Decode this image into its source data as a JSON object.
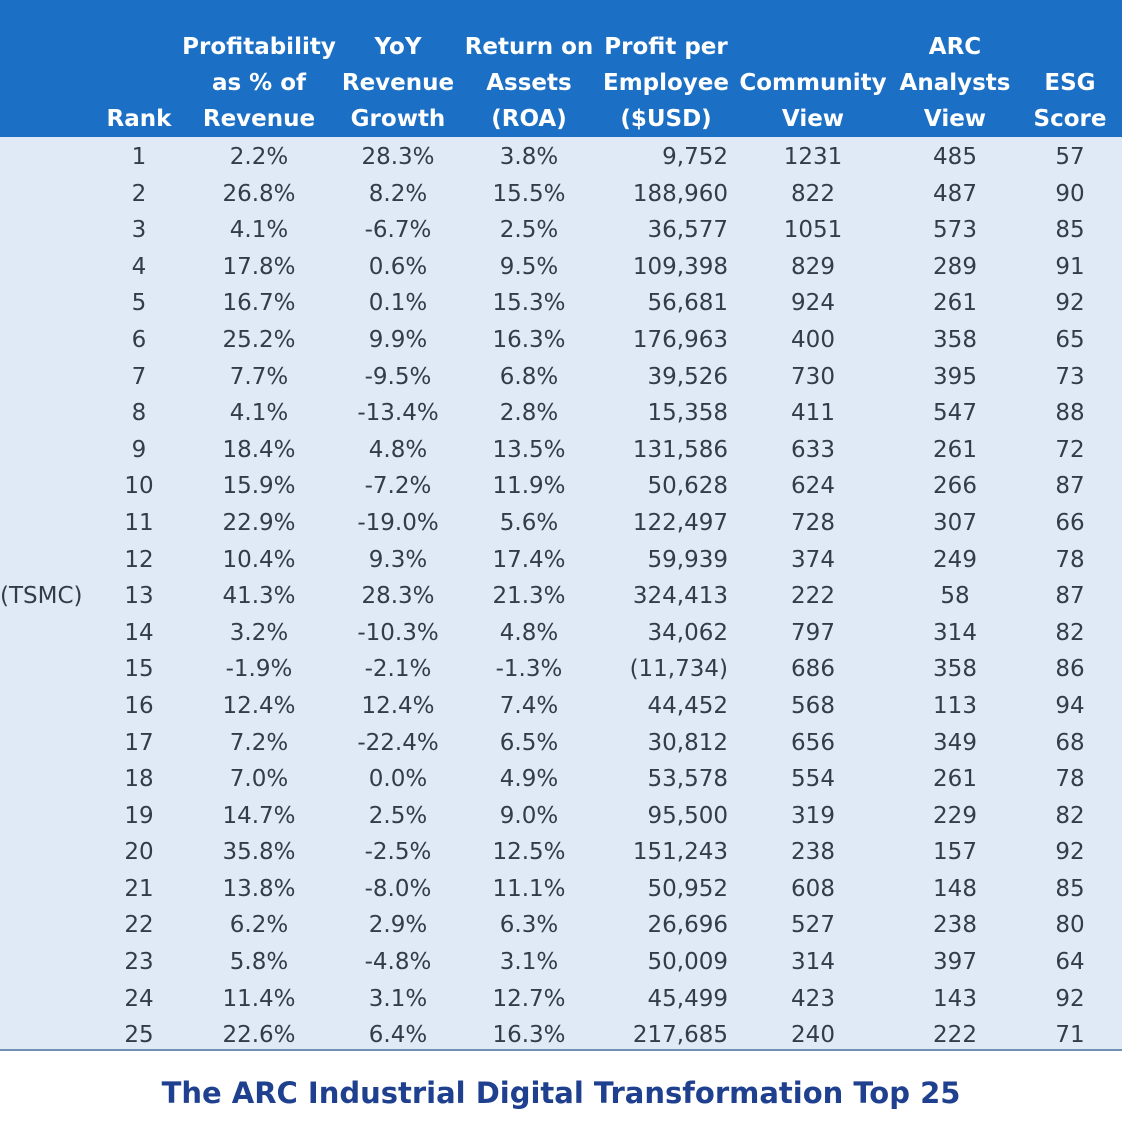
{
  "headers": {
    "rank": "Rank",
    "profitability": "Profitability\nas % of\nRevenue",
    "yoy": "YoY\nRevenue\nGrowth",
    "roa": "Return on\nAssets\n(ROA)",
    "ppe": "Profit per\nEmployee\n($USD)",
    "community": "Community\nView",
    "arc": "ARC\nAnalysts\nView",
    "esg": "ESG\nScore"
  },
  "rows": [
    {
      "name": "",
      "rank": "1",
      "profit": "2.2%",
      "yoy": "28.3%",
      "roa": "3.8%",
      "ppe": "9,752",
      "community": "1231",
      "arc": "485",
      "esg": "57"
    },
    {
      "name": "",
      "rank": "2",
      "profit": "26.8%",
      "yoy": "8.2%",
      "roa": "15.5%",
      "ppe": "188,960",
      "community": "822",
      "arc": "487",
      "esg": "90"
    },
    {
      "name": "",
      "rank": "3",
      "profit": "4.1%",
      "yoy": "-6.7%",
      "roa": "2.5%",
      "ppe": "36,577",
      "community": "1051",
      "arc": "573",
      "esg": "85"
    },
    {
      "name": "",
      "rank": "4",
      "profit": "17.8%",
      "yoy": "0.6%",
      "roa": "9.5%",
      "ppe": "109,398",
      "community": "829",
      "arc": "289",
      "esg": "91"
    },
    {
      "name": "",
      "rank": "5",
      "profit": "16.7%",
      "yoy": "0.1%",
      "roa": "15.3%",
      "ppe": "56,681",
      "community": "924",
      "arc": "261",
      "esg": "92"
    },
    {
      "name": "",
      "rank": "6",
      "profit": "25.2%",
      "yoy": "9.9%",
      "roa": "16.3%",
      "ppe": "176,963",
      "community": "400",
      "arc": "358",
      "esg": "65"
    },
    {
      "name": "",
      "rank": "7",
      "profit": "7.7%",
      "yoy": "-9.5%",
      "roa": "6.8%",
      "ppe": "39,526",
      "community": "730",
      "arc": "395",
      "esg": "73"
    },
    {
      "name": "",
      "rank": "8",
      "profit": "4.1%",
      "yoy": "-13.4%",
      "roa": "2.8%",
      "ppe": "15,358",
      "community": "411",
      "arc": "547",
      "esg": "88"
    },
    {
      "name": "",
      "rank": "9",
      "profit": "18.4%",
      "yoy": "4.8%",
      "roa": "13.5%",
      "ppe": "131,586",
      "community": "633",
      "arc": "261",
      "esg": "72"
    },
    {
      "name": "",
      "rank": "10",
      "profit": "15.9%",
      "yoy": "-7.2%",
      "roa": "11.9%",
      "ppe": "50,628",
      "community": "624",
      "arc": "266",
      "esg": "87"
    },
    {
      "name": "",
      "rank": "11",
      "profit": "22.9%",
      "yoy": "-19.0%",
      "roa": "5.6%",
      "ppe": "122,497",
      "community": "728",
      "arc": "307",
      "esg": "66"
    },
    {
      "name": "",
      "rank": "12",
      "profit": "10.4%",
      "yoy": "9.3%",
      "roa": "17.4%",
      "ppe": "59,939",
      "community": "374",
      "arc": "249",
      "esg": "78"
    },
    {
      "name": "(TSMC)",
      "rank": "13",
      "profit": "41.3%",
      "yoy": "28.3%",
      "roa": "21.3%",
      "ppe": "324,413",
      "community": "222",
      "arc": "58",
      "esg": "87"
    },
    {
      "name": "",
      "rank": "14",
      "profit": "3.2%",
      "yoy": "-10.3%",
      "roa": "4.8%",
      "ppe": "34,062",
      "community": "797",
      "arc": "314",
      "esg": "82"
    },
    {
      "name": "",
      "rank": "15",
      "profit": "-1.9%",
      "yoy": "-2.1%",
      "roa": "-1.3%",
      "ppe": "(11,734)",
      "community": "686",
      "arc": "358",
      "esg": "86"
    },
    {
      "name": "",
      "rank": "16",
      "profit": "12.4%",
      "yoy": "12.4%",
      "roa": "7.4%",
      "ppe": "44,452",
      "community": "568",
      "arc": "113",
      "esg": "94"
    },
    {
      "name": "",
      "rank": "17",
      "profit": "7.2%",
      "yoy": "-22.4%",
      "roa": "6.5%",
      "ppe": "30,812",
      "community": "656",
      "arc": "349",
      "esg": "68"
    },
    {
      "name": "",
      "rank": "18",
      "profit": "7.0%",
      "yoy": "0.0%",
      "roa": "4.9%",
      "ppe": "53,578",
      "community": "554",
      "arc": "261",
      "esg": "78"
    },
    {
      "name": "",
      "rank": "19",
      "profit": "14.7%",
      "yoy": "2.5%",
      "roa": "9.0%",
      "ppe": "95,500",
      "community": "319",
      "arc": "229",
      "esg": "82"
    },
    {
      "name": "",
      "rank": "20",
      "profit": "35.8%",
      "yoy": "-2.5%",
      "roa": "12.5%",
      "ppe": "151,243",
      "community": "238",
      "arc": "157",
      "esg": "92"
    },
    {
      "name": "",
      "rank": "21",
      "profit": "13.8%",
      "yoy": "-8.0%",
      "roa": "11.1%",
      "ppe": "50,952",
      "community": "608",
      "arc": "148",
      "esg": "85"
    },
    {
      "name": "",
      "rank": "22",
      "profit": "6.2%",
      "yoy": "2.9%",
      "roa": "6.3%",
      "ppe": "26,696",
      "community": "527",
      "arc": "238",
      "esg": "80"
    },
    {
      "name": "",
      "rank": "23",
      "profit": "5.8%",
      "yoy": "-4.8%",
      "roa": "3.1%",
      "ppe": "50,009",
      "community": "314",
      "arc": "397",
      "esg": "64"
    },
    {
      "name": "",
      "rank": "24",
      "profit": "11.4%",
      "yoy": "3.1%",
      "roa": "12.7%",
      "ppe": "45,499",
      "community": "423",
      "arc": "143",
      "esg": "92"
    },
    {
      "name": "",
      "rank": "25",
      "profit": "22.6%",
      "yoy": "6.4%",
      "roa": "16.3%",
      "ppe": "217,685",
      "community": "240",
      "arc": "222",
      "esg": "71"
    }
  ],
  "caption": "The ARC Industrial Digital Transformation Top 25",
  "colors": {
    "header_bg": "#1b6fc4",
    "body_bg": "#dfeaf6",
    "text": "#333c48",
    "caption": "#1f3f8f"
  }
}
